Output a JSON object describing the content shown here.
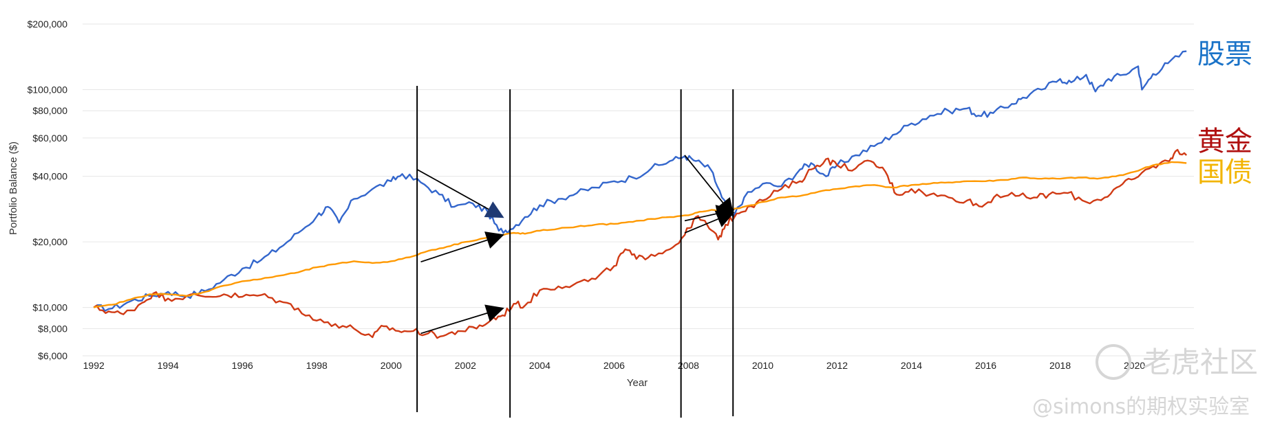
{
  "chart_data": {
    "type": "line",
    "xlabel": "Year",
    "ylabel": "Portfolio Balance ($)",
    "y_scale": "log",
    "ylim": [
      6000,
      200000
    ],
    "xlim": [
      1991.7,
      2021.6
    ],
    "x_ticks": [
      "1992",
      "1994",
      "1996",
      "1998",
      "2000",
      "2002",
      "2004",
      "2006",
      "2008",
      "2010",
      "2012",
      "2014",
      "2016",
      "2018",
      "2020"
    ],
    "y_ticks": [
      {
        "value": 6000,
        "label": "$6,000"
      },
      {
        "value": 8000,
        "label": "$8,000"
      },
      {
        "value": 10000,
        "label": "$10,000"
      },
      {
        "value": 20000,
        "label": "$20,000"
      },
      {
        "value": 40000,
        "label": "$40,000"
      },
      {
        "value": 60000,
        "label": "$60,000"
      },
      {
        "value": 80000,
        "label": "$80,000"
      },
      {
        "value": 100000,
        "label": "$100,000"
      },
      {
        "value": 200000,
        "label": "$200,000"
      }
    ],
    "grid": true,
    "series": [
      {
        "name": "股票",
        "color": "#3366cc",
        "points": [
          [
            1992.0,
            10000
          ],
          [
            1992.5,
            9900
          ],
          [
            1993.0,
            10700
          ],
          [
            1993.5,
            11300
          ],
          [
            1994.0,
            11800
          ],
          [
            1994.5,
            11300
          ],
          [
            1995.0,
            11900
          ],
          [
            1995.5,
            13400
          ],
          [
            1996.0,
            15100
          ],
          [
            1996.5,
            16500
          ],
          [
            1997.0,
            18800
          ],
          [
            1997.5,
            22000
          ],
          [
            1998.0,
            26200
          ],
          [
            1998.3,
            29000
          ],
          [
            1998.6,
            24500
          ],
          [
            1999.0,
            31500
          ],
          [
            1999.5,
            35000
          ],
          [
            2000.0,
            38000
          ],
          [
            2000.3,
            41000
          ],
          [
            2000.8,
            37500
          ],
          [
            2001.3,
            33000
          ],
          [
            2001.7,
            29000
          ],
          [
            2002.2,
            30000
          ],
          [
            2002.6,
            27500
          ],
          [
            2002.9,
            22500
          ],
          [
            2003.2,
            22800
          ],
          [
            2003.6,
            26000
          ],
          [
            2004.0,
            29500
          ],
          [
            2004.5,
            31500
          ],
          [
            2005.0,
            33500
          ],
          [
            2005.5,
            35500
          ],
          [
            2006.0,
            38000
          ],
          [
            2006.5,
            39500
          ],
          [
            2007.0,
            43500
          ],
          [
            2007.5,
            47000
          ],
          [
            2007.9,
            49500
          ],
          [
            2008.2,
            47000
          ],
          [
            2008.6,
            43000
          ],
          [
            2008.9,
            32000
          ],
          [
            2009.2,
            26000
          ],
          [
            2009.5,
            32000
          ],
          [
            2010.0,
            37000
          ],
          [
            2010.5,
            36000
          ],
          [
            2011.0,
            43000
          ],
          [
            2011.3,
            46000
          ],
          [
            2011.7,
            40000
          ],
          [
            2012.0,
            45000
          ],
          [
            2012.5,
            50000
          ],
          [
            2013.0,
            55000
          ],
          [
            2013.5,
            62000
          ],
          [
            2014.0,
            70000
          ],
          [
            2014.5,
            76000
          ],
          [
            2015.0,
            80000
          ],
          [
            2015.5,
            82000
          ],
          [
            2015.8,
            76000
          ],
          [
            2016.2,
            78000
          ],
          [
            2016.7,
            86000
          ],
          [
            2017.0,
            92000
          ],
          [
            2017.5,
            100000
          ],
          [
            2018.0,
            112000
          ],
          [
            2018.3,
            108000
          ],
          [
            2018.7,
            117000
          ],
          [
            2018.95,
            98000
          ],
          [
            2019.3,
            112000
          ],
          [
            2019.7,
            117000
          ],
          [
            2020.1,
            128000
          ],
          [
            2020.2,
            100000
          ],
          [
            2020.5,
            118000
          ],
          [
            2020.9,
            132000
          ],
          [
            2021.4,
            150000
          ]
        ]
      },
      {
        "name": "黄金",
        "color": "#d03a14",
        "points": [
          [
            1992.0,
            10000
          ],
          [
            1992.4,
            9600
          ],
          [
            1992.8,
            9300
          ],
          [
            1993.3,
            10500
          ],
          [
            1993.6,
            11600
          ],
          [
            1994.0,
            11000
          ],
          [
            1994.5,
            11300
          ],
          [
            1995.0,
            11200
          ],
          [
            1995.5,
            11500
          ],
          [
            1996.0,
            11200
          ],
          [
            1996.5,
            11400
          ],
          [
            1997.0,
            10700
          ],
          [
            1997.5,
            9900
          ],
          [
            1998.0,
            8700
          ],
          [
            1998.5,
            8400
          ],
          [
            1999.0,
            8000
          ],
          [
            1999.5,
            7300
          ],
          [
            1999.8,
            8200
          ],
          [
            2000.2,
            7800
          ],
          [
            2000.6,
            7800
          ],
          [
            2001.0,
            7600
          ],
          [
            2001.4,
            7400
          ],
          [
            2001.8,
            7800
          ],
          [
            2002.3,
            8000
          ],
          [
            2002.7,
            8800
          ],
          [
            2003.0,
            9200
          ],
          [
            2003.3,
            10400
          ],
          [
            2003.6,
            10200
          ],
          [
            2004.0,
            12000
          ],
          [
            2004.5,
            12500
          ],
          [
            2005.0,
            13000
          ],
          [
            2005.5,
            13500
          ],
          [
            2006.0,
            15500
          ],
          [
            2006.3,
            18500
          ],
          [
            2006.6,
            16700
          ],
          [
            2007.0,
            17500
          ],
          [
            2007.5,
            18500
          ],
          [
            2007.9,
            21500
          ],
          [
            2008.2,
            26000
          ],
          [
            2008.5,
            24000
          ],
          [
            2008.8,
            20500
          ],
          [
            2009.0,
            24000
          ],
          [
            2009.3,
            27000
          ],
          [
            2009.6,
            29000
          ],
          [
            2010.0,
            31000
          ],
          [
            2010.5,
            35000
          ],
          [
            2011.0,
            38000
          ],
          [
            2011.3,
            43000
          ],
          [
            2011.7,
            48000
          ],
          [
            2012.0,
            45000
          ],
          [
            2012.5,
            43500
          ],
          [
            2012.9,
            47000
          ],
          [
            2013.3,
            42000
          ],
          [
            2013.6,
            33000
          ],
          [
            2014.0,
            35000
          ],
          [
            2014.5,
            33000
          ],
          [
            2015.0,
            32000
          ],
          [
            2015.5,
            31000
          ],
          [
            2015.9,
            29000
          ],
          [
            2016.3,
            33000
          ],
          [
            2016.8,
            32500
          ],
          [
            2017.3,
            32000
          ],
          [
            2017.7,
            33000
          ],
          [
            2018.2,
            33500
          ],
          [
            2018.7,
            30500
          ],
          [
            2019.2,
            32000
          ],
          [
            2019.6,
            36000
          ],
          [
            2020.0,
            39000
          ],
          [
            2020.5,
            44500
          ],
          [
            2020.9,
            47000
          ],
          [
            2021.1,
            52000
          ],
          [
            2021.4,
            50000
          ]
        ]
      },
      {
        "name": "国债",
        "color": "#ff9900",
        "points": [
          [
            1992.0,
            10000
          ],
          [
            1992.5,
            10300
          ],
          [
            1993.0,
            10900
          ],
          [
            1993.5,
            11500
          ],
          [
            1994.0,
            11500
          ],
          [
            1994.5,
            11300
          ],
          [
            1995.0,
            11800
          ],
          [
            1995.5,
            12600
          ],
          [
            1996.0,
            13200
          ],
          [
            1996.5,
            13500
          ],
          [
            1997.0,
            14000
          ],
          [
            1997.5,
            14500
          ],
          [
            1998.0,
            15300
          ],
          [
            1998.5,
            15800
          ],
          [
            1999.0,
            16300
          ],
          [
            1999.5,
            16000
          ],
          [
            2000.0,
            16300
          ],
          [
            2000.5,
            17000
          ],
          [
            2001.0,
            18200
          ],
          [
            2001.5,
            19000
          ],
          [
            2002.0,
            20000
          ],
          [
            2002.5,
            20800
          ],
          [
            2003.0,
            21500
          ],
          [
            2003.3,
            22000
          ],
          [
            2003.6,
            21800
          ],
          [
            2004.0,
            22500
          ],
          [
            2004.5,
            23000
          ],
          [
            2005.0,
            23500
          ],
          [
            2005.5,
            24000
          ],
          [
            2006.0,
            24200
          ],
          [
            2006.5,
            24700
          ],
          [
            2007.0,
            25500
          ],
          [
            2007.5,
            26000
          ],
          [
            2008.0,
            26500
          ],
          [
            2008.3,
            27500
          ],
          [
            2008.7,
            28000
          ],
          [
            2009.0,
            27500
          ],
          [
            2009.3,
            28500
          ],
          [
            2009.7,
            29500
          ],
          [
            2010.0,
            30500
          ],
          [
            2010.5,
            32000
          ],
          [
            2011.0,
            32500
          ],
          [
            2011.5,
            34000
          ],
          [
            2012.0,
            35000
          ],
          [
            2012.5,
            36000
          ],
          [
            2013.0,
            36500
          ],
          [
            2013.5,
            35500
          ],
          [
            2014.0,
            36500
          ],
          [
            2014.5,
            37000
          ],
          [
            2015.0,
            37500
          ],
          [
            2015.5,
            38000
          ],
          [
            2016.0,
            38000
          ],
          [
            2016.5,
            38500
          ],
          [
            2017.0,
            39500
          ],
          [
            2017.5,
            39000
          ],
          [
            2018.0,
            39000
          ],
          [
            2018.5,
            39500
          ],
          [
            2019.0,
            39000
          ],
          [
            2019.5,
            40000
          ],
          [
            2020.0,
            42000
          ],
          [
            2020.5,
            45000
          ],
          [
            2021.0,
            46500
          ],
          [
            2021.4,
            46000
          ]
        ]
      }
    ],
    "vertical_markers": [
      2000.7,
      2003.2,
      2007.8,
      2009.2
    ],
    "arrows": [
      {
        "from": [
          2000.7,
          43000
        ],
        "to": [
          2003.0,
          26000
        ],
        "fill": "#1f3a73"
      },
      {
        "from": [
          2000.8,
          16200
        ],
        "to": [
          2003.0,
          21500
        ],
        "fill": "#000000"
      },
      {
        "from": [
          2000.8,
          7600
        ],
        "to": [
          2003.0,
          9900
        ],
        "fill": "#000000"
      },
      {
        "from": [
          2007.9,
          50000
        ],
        "to": [
          2009.2,
          26500
        ],
        "fill": "#000000"
      },
      {
        "from": [
          2007.9,
          25000
        ],
        "to": [
          2009.2,
          28000
        ],
        "fill": "#000000"
      },
      {
        "from": [
          2007.9,
          22000
        ],
        "to": [
          2009.2,
          27200
        ],
        "fill": "#000000"
      }
    ]
  },
  "watermark": {
    "brand": "老虎社区",
    "handle": "@simons的期权实验室"
  }
}
